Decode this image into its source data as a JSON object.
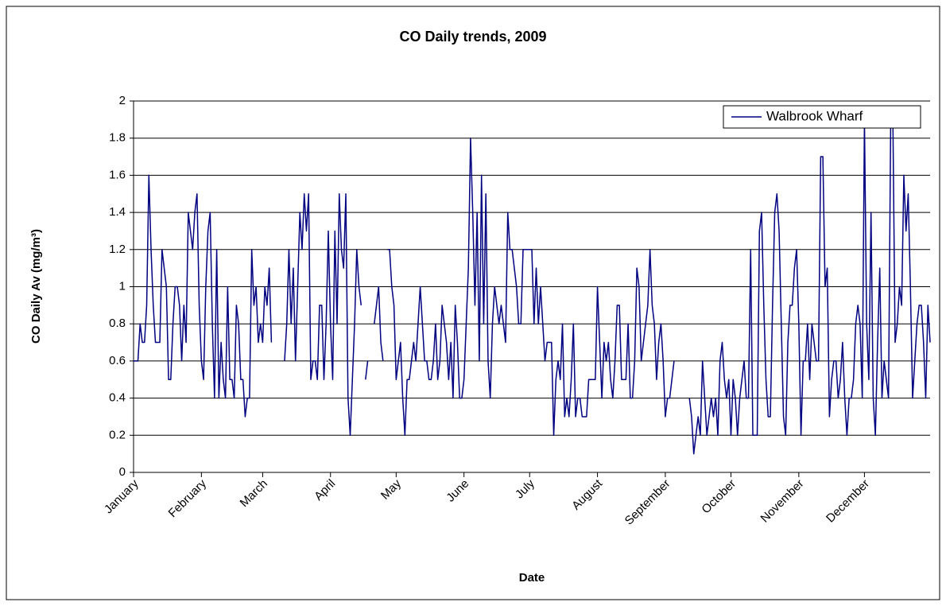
{
  "chart_data": {
    "type": "line",
    "title": "CO Daily trends, 2009",
    "xlabel": "Date",
    "ylabel": "CO Daily Av (mg/m³)",
    "categories": [
      "January",
      null,
      null,
      null,
      null,
      null,
      null,
      null,
      null,
      null,
      null,
      null,
      null,
      null,
      null,
      null,
      null,
      null,
      null,
      null,
      null,
      null,
      null,
      null,
      null,
      null,
      null,
      null,
      null,
      null,
      null,
      "February",
      null,
      null,
      null,
      null,
      null,
      null,
      null,
      null,
      null,
      null,
      null,
      null,
      null,
      null,
      null,
      null,
      null,
      null,
      null,
      null,
      null,
      null,
      null,
      null,
      null,
      null,
      null,
      "March",
      null,
      null,
      null,
      null,
      null,
      null,
      null,
      null,
      null,
      null,
      null,
      null,
      null,
      null,
      null,
      null,
      null,
      null,
      null,
      null,
      null,
      null,
      null,
      null,
      null,
      null,
      null,
      null,
      null,
      null,
      "April",
      null,
      null,
      null,
      null,
      null,
      null,
      null,
      null,
      null,
      null,
      null,
      null,
      null,
      null,
      null,
      null,
      null,
      null,
      null,
      null,
      null,
      null,
      null,
      null,
      null,
      null,
      null,
      null,
      null,
      "May",
      null,
      null,
      null,
      null,
      null,
      null,
      null,
      null,
      null,
      null,
      null,
      null,
      null,
      null,
      null,
      null,
      null,
      null,
      null,
      null,
      null,
      null,
      null,
      null,
      null,
      null,
      null,
      null,
      null,
      null,
      "June",
      null,
      null,
      null,
      null,
      null,
      null,
      null,
      null,
      null,
      null,
      null,
      null,
      null,
      null,
      null,
      null,
      null,
      null,
      null,
      null,
      null,
      null,
      null,
      null,
      null,
      null,
      null,
      null,
      null,
      "July",
      null,
      null,
      null,
      null,
      null,
      null,
      null,
      null,
      null,
      null,
      null,
      null,
      null,
      null,
      null,
      null,
      null,
      null,
      null,
      null,
      null,
      null,
      null,
      null,
      null,
      null,
      null,
      null,
      null,
      null,
      "August",
      null,
      null,
      null,
      null,
      null,
      null,
      null,
      null,
      null,
      null,
      null,
      null,
      null,
      null,
      null,
      null,
      null,
      null,
      null,
      null,
      null,
      null,
      null,
      null,
      null,
      null,
      null,
      null,
      null,
      null,
      "September",
      null,
      null,
      null,
      null,
      null,
      null,
      null,
      null,
      null,
      null,
      null,
      null,
      null,
      null,
      null,
      null,
      null,
      null,
      null,
      null,
      null,
      null,
      null,
      null,
      null,
      null,
      null,
      null,
      null,
      "October",
      null,
      null,
      null,
      null,
      null,
      null,
      null,
      null,
      null,
      null,
      null,
      null,
      null,
      null,
      null,
      null,
      null,
      null,
      null,
      null,
      null,
      null,
      null,
      null,
      null,
      null,
      null,
      null,
      null,
      null,
      "November",
      null,
      null,
      null,
      null,
      null,
      null,
      null,
      null,
      null,
      null,
      null,
      null,
      null,
      null,
      null,
      null,
      null,
      null,
      null,
      null,
      null,
      null,
      null,
      null,
      null,
      null,
      null,
      null,
      null,
      "December",
      null,
      null,
      null,
      null,
      null,
      null,
      null,
      null,
      null,
      null,
      null,
      null,
      null,
      null,
      null,
      null,
      null,
      null,
      null,
      null,
      null,
      null,
      null,
      null,
      null,
      null,
      null,
      null,
      null,
      null
    ],
    "series": [
      {
        "name": "Walbrook Wharf",
        "color": "#000080",
        "values": [
          0.6,
          0.6,
          0.6,
          0.8,
          0.7,
          0.7,
          0.9,
          1.6,
          1.2,
          0.9,
          0.7,
          0.7,
          0.7,
          1.2,
          1.1,
          1.0,
          0.5,
          0.5,
          0.8,
          1.0,
          1.0,
          0.9,
          0.6,
          0.9,
          0.7,
          1.4,
          1.3,
          1.2,
          1.4,
          1.5,
          0.9,
          0.6,
          0.5,
          1.0,
          1.3,
          1.4,
          0.8,
          0.4,
          1.2,
          0.4,
          0.7,
          0.5,
          0.4,
          1.0,
          0.5,
          0.5,
          0.4,
          0.9,
          0.8,
          0.5,
          0.5,
          0.3,
          0.4,
          0.4,
          1.2,
          0.9,
          1.0,
          0.7,
          0.8,
          0.7,
          1.0,
          0.9,
          1.1,
          0.7,
          null,
          null,
          null,
          null,
          null,
          0.6,
          0.8,
          1.2,
          0.8,
          1.1,
          0.6,
          1.0,
          1.4,
          1.2,
          1.5,
          1.3,
          1.5,
          0.5,
          0.6,
          0.6,
          0.5,
          0.9,
          0.9,
          0.5,
          0.8,
          1.3,
          0.8,
          0.5,
          1.3,
          0.8,
          1.5,
          1.2,
          1.1,
          1.5,
          0.4,
          0.2,
          0.5,
          0.8,
          1.2,
          1.0,
          0.9,
          null,
          0.5,
          0.6,
          null,
          null,
          0.8,
          0.9,
          1.0,
          0.7,
          0.6,
          null,
          1.2,
          1.2,
          1.0,
          0.9,
          0.5,
          0.6,
          0.7,
          0.4,
          0.2,
          0.5,
          0.5,
          0.6,
          0.7,
          0.6,
          0.8,
          1.0,
          0.8,
          0.6,
          0.6,
          0.5,
          0.5,
          0.6,
          0.8,
          0.5,
          0.6,
          0.9,
          0.8,
          0.7,
          0.5,
          0.7,
          0.4,
          0.9,
          0.7,
          0.4,
          0.4,
          0.5,
          0.8,
          1.1,
          1.8,
          1.4,
          0.9,
          1.4,
          0.6,
          1.6,
          0.8,
          1.5,
          0.6,
          0.4,
          0.8,
          1.0,
          0.9,
          0.8,
          0.9,
          0.8,
          0.7,
          1.4,
          1.2,
          1.2,
          1.1,
          1.0,
          0.8,
          0.8,
          1.2,
          1.2,
          1.2,
          1.2,
          1.2,
          0.8,
          1.1,
          0.8,
          1.0,
          0.8,
          0.6,
          0.7,
          0.7,
          0.7,
          0.2,
          0.5,
          0.6,
          0.5,
          0.8,
          0.3,
          0.4,
          0.3,
          0.5,
          0.8,
          0.3,
          0.4,
          0.4,
          0.3,
          0.3,
          0.3,
          0.5,
          0.5,
          0.5,
          0.5,
          1.0,
          0.7,
          0.4,
          0.7,
          0.6,
          0.7,
          0.5,
          0.4,
          0.6,
          0.9,
          0.9,
          0.5,
          0.5,
          0.5,
          0.8,
          0.4,
          0.4,
          0.6,
          1.1,
          1.0,
          0.6,
          0.7,
          0.8,
          0.9,
          1.2,
          0.9,
          0.8,
          0.5,
          0.7,
          0.8,
          0.6,
          0.3,
          0.4,
          0.4,
          0.5,
          0.6,
          null,
          null,
          null,
          null,
          null,
          null,
          0.4,
          0.3,
          0.1,
          0.2,
          0.3,
          0.2,
          0.6,
          0.4,
          0.2,
          0.3,
          0.4,
          0.3,
          0.4,
          0.2,
          0.6,
          0.7,
          0.5,
          0.4,
          0.5,
          0.2,
          0.5,
          0.4,
          0.2,
          0.4,
          0.5,
          0.6,
          0.4,
          0.4,
          1.2,
          0.2,
          0.2,
          0.2,
          1.3,
          1.4,
          0.9,
          0.5,
          0.3,
          0.3,
          0.9,
          1.4,
          1.5,
          1.3,
          0.8,
          0.3,
          0.2,
          0.7,
          0.9,
          0.9,
          1.1,
          1.2,
          0.8,
          0.2,
          0.6,
          0.6,
          0.8,
          0.5,
          0.8,
          0.7,
          0.6,
          0.6,
          1.7,
          1.7,
          1.0,
          1.1,
          0.3,
          0.5,
          0.6,
          0.6,
          0.4,
          0.5,
          0.7,
          0.4,
          0.2,
          0.4,
          0.4,
          0.5,
          0.8,
          0.9,
          0.8,
          0.4,
          1.9,
          0.8,
          0.5,
          1.4,
          0.4,
          0.2,
          0.7,
          1.1,
          0.4,
          0.6,
          0.5,
          0.4,
          1.9,
          1.9,
          0.7,
          0.8,
          1.0,
          0.9,
          1.6,
          1.3,
          1.5,
          1.0,
          0.4,
          0.6,
          0.8,
          0.9,
          0.9,
          0.7,
          0.4,
          0.9,
          0.7
        ]
      }
    ],
    "ylim": [
      0,
      2
    ],
    "yticks": [
      0,
      0.2,
      0.4,
      0.6,
      0.8,
      1,
      1.2,
      1.4,
      1.6,
      1.8,
      2
    ],
    "grid": true,
    "legend": "top-right"
  }
}
